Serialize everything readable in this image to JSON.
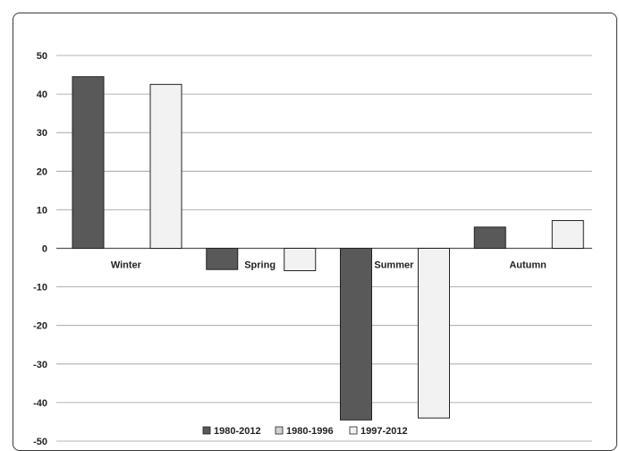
{
  "chart_data": {
    "type": "bar",
    "categories": [
      "Winter",
      "Spring",
      "Summer",
      "Autumn"
    ],
    "series": [
      {
        "name": "1980-2012",
        "values": [
          44.5,
          -5.5,
          -44.5,
          5.5
        ],
        "color": "#595959"
      },
      {
        "name": "1980-1996",
        "values": [
          null,
          null,
          null,
          null
        ],
        "color": "#d0d0d0"
      },
      {
        "name": "1997-2012",
        "values": [
          42.5,
          -5.8,
          -44.0,
          7.2
        ],
        "color": "#f2f2f2"
      }
    ],
    "yticks": [
      50,
      40,
      30,
      20,
      10,
      0,
      -10,
      -20,
      -30,
      -40,
      -50
    ],
    "ylim": [
      -50,
      50
    ],
    "grid": true,
    "legend_position": "bottom"
  }
}
